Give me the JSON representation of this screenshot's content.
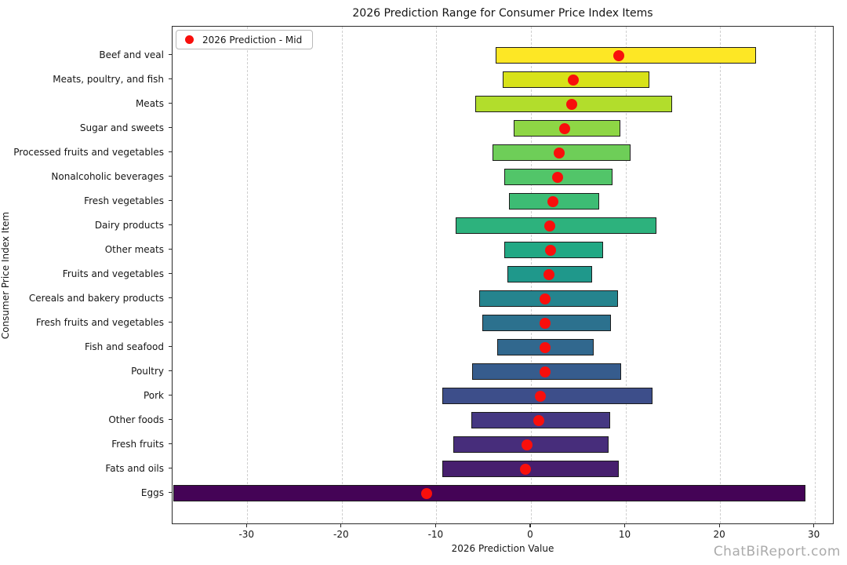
{
  "watermark": "ChatBiReport.com",
  "chart_data": {
    "type": "range_bar_horizontal",
    "title": "2026 Prediction Range for Consumer Price Index Items",
    "xlabel": "2026 Prediction Value",
    "ylabel": "Consumer Price Index Item",
    "legend_label": "2026 Prediction - Mid",
    "legend_position": "upper left",
    "grid": "vertical-dashed",
    "xlim": [
      -37.9,
      32.1
    ],
    "xticks": [
      -30,
      -20,
      -10,
      0,
      10,
      20,
      30
    ],
    "xtick_labels": [
      "-30",
      "-20",
      "-10",
      "0",
      "10",
      "20",
      "30"
    ],
    "categories": [
      "Beef and veal",
      "Meats, poultry, and fish",
      "Meats",
      "Sugar and sweets",
      "Processed fruits and vegetables",
      "Nonalcoholic beverages",
      "Fresh vegetables",
      "Dairy products",
      "Other meats",
      "Fruits and vegetables",
      "Cereals and bakery products",
      "Fresh fruits and vegetables",
      "Fish and seafood",
      "Poultry",
      "Pork",
      "Other foods",
      "Fresh fruits",
      "Fats and oils",
      "Eggs"
    ],
    "series": [
      {
        "name": "Prediction Range Low",
        "values": [
          -3.7,
          -3.0,
          -5.9,
          -1.8,
          -4.1,
          -2.8,
          -2.3,
          -8.0,
          -2.8,
          -2.5,
          -5.5,
          -5.1,
          -3.6,
          -6.2,
          -9.4,
          -6.3,
          -8.2,
          -9.4,
          -37.8
        ]
      },
      {
        "name": "Prediction Range High",
        "values": [
          23.8,
          12.5,
          14.9,
          9.5,
          10.5,
          8.6,
          7.2,
          13.3,
          7.6,
          6.5,
          9.2,
          8.5,
          6.6,
          9.5,
          12.9,
          8.4,
          8.2,
          9.3,
          29.0
        ]
      },
      {
        "name": "2026 Prediction - Mid",
        "values": [
          9.3,
          4.5,
          4.3,
          3.6,
          3.0,
          2.8,
          2.3,
          2.0,
          2.1,
          1.9,
          1.5,
          1.5,
          1.5,
          1.5,
          1.0,
          0.8,
          -0.4,
          -0.6,
          -11.0
        ]
      }
    ],
    "bar_colors": [
      "#fde725",
      "#d8e219",
      "#b2dd2c",
      "#8ed645",
      "#6ece58",
      "#52c569",
      "#3dbc74",
      "#2db27d",
      "#22a884",
      "#1f988b",
      "#25848e",
      "#2c718e",
      "#31688e",
      "#365c8d",
      "#3d4e8a",
      "#453882",
      "#472d7b",
      "#471f6e",
      "#440356"
    ],
    "marker_color": "#f80f0c",
    "grid_color": "#cfcfcf"
  }
}
